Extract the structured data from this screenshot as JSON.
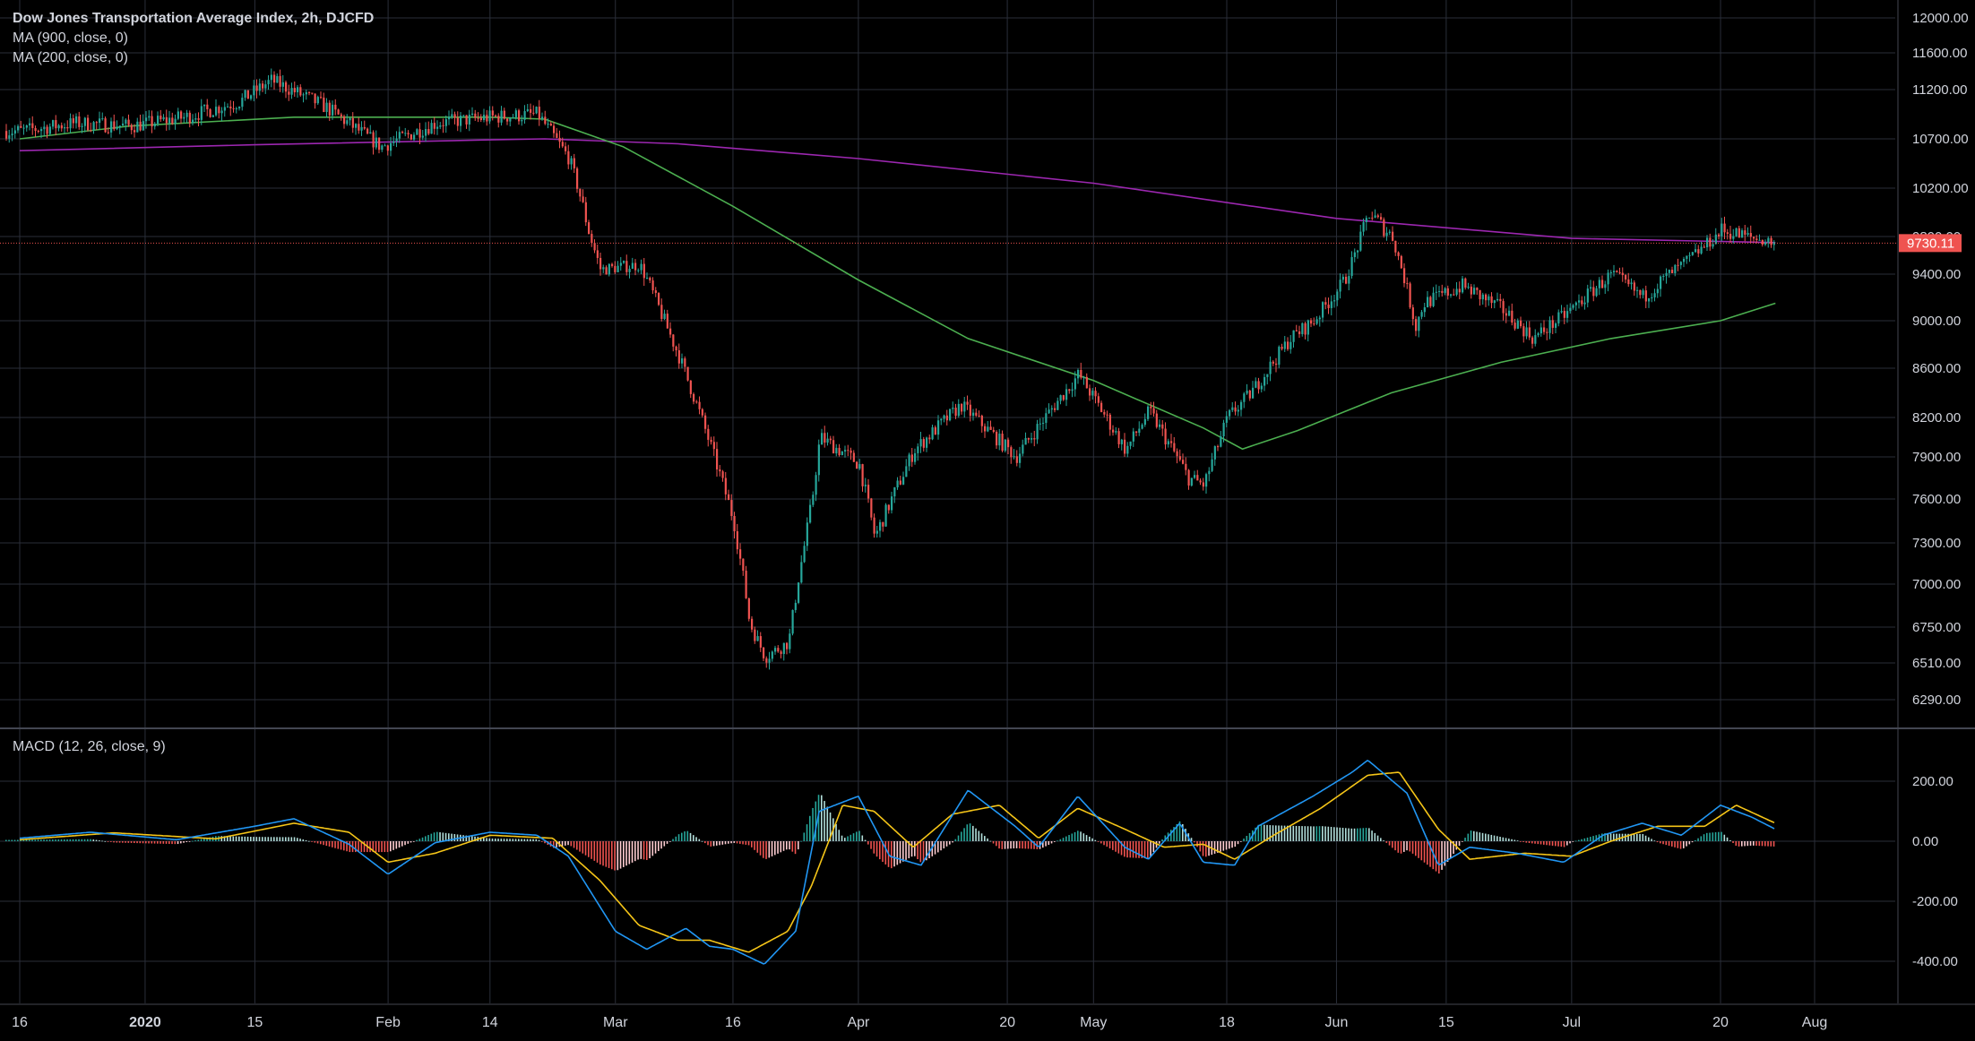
{
  "header": {
    "title": "Dow Jones Transportation Average Index, 2h, DJCFD",
    "ma1": "MA (900, close, 0)",
    "ma2": "MA (200, close, 0)",
    "macd": "MACD (12, 26, close, 9)"
  },
  "colors": {
    "background": "#000000",
    "grid": "#2a2e39",
    "text": "#d1d4dc",
    "up": "#26a69a",
    "down": "#ef5350",
    "ma_long": "#9c27b0",
    "ma_short": "#4caf50",
    "macd_line": "#2196f3",
    "signal_line": "#f5c518",
    "price_line": "#ef5350"
  },
  "chart_data": [
    {
      "type": "candlestick",
      "title": "Dow Jones Transportation Average Index, 2h, DJCFD",
      "y_ticks": [
        "12000.00",
        "11600.00",
        "11200.00",
        "10700.00",
        "10200.00",
        "9800.00",
        "9400.00",
        "9000.00",
        "8600.00",
        "8200.00",
        "7900.00",
        "7600.00",
        "7300.00",
        "7000.00",
        "6750.00",
        "6510.00",
        "6290.00"
      ],
      "x_ticks": [
        "16",
        "2020",
        "15",
        "Feb",
        "14",
        "Mar",
        "16",
        "Apr",
        "20",
        "May",
        "18",
        "Jun",
        "15",
        "Jul",
        "20",
        "Aug"
      ],
      "last_price": "9730.11",
      "price_path": [
        [
          "2019-12-16",
          10780
        ],
        [
          "2019-12-23",
          10860
        ],
        [
          "2019-12-30",
          10830
        ],
        [
          "2020-01-06",
          10920
        ],
        [
          "2020-01-13",
          11080
        ],
        [
          "2020-01-17",
          11300
        ],
        [
          "2020-01-24",
          11020
        ],
        [
          "2020-01-31",
          10620
        ],
        [
          "2020-02-07",
          10860
        ],
        [
          "2020-02-14",
          10920
        ],
        [
          "2020-02-20",
          10950
        ],
        [
          "2020-02-24",
          10500
        ],
        [
          "2020-02-28",
          9450
        ],
        [
          "2020-03-04",
          9500
        ],
        [
          "2020-03-09",
          8700
        ],
        [
          "2020-03-11",
          8350
        ],
        [
          "2020-03-16",
          7450
        ],
        [
          "2020-03-18",
          6780
        ],
        [
          "2020-03-20",
          6550
        ],
        [
          "2020-03-23",
          6650
        ],
        [
          "2020-03-26",
          7600
        ],
        [
          "2020-03-27",
          8050
        ],
        [
          "2020-04-01",
          7850
        ],
        [
          "2020-04-03",
          7340
        ],
        [
          "2020-04-08",
          7950
        ],
        [
          "2020-04-14",
          8300
        ],
        [
          "2020-04-21",
          7900
        ],
        [
          "2020-04-29",
          8550
        ],
        [
          "2020-05-05",
          7950
        ],
        [
          "2020-05-08",
          8250
        ],
        [
          "2020-05-13",
          7750
        ],
        [
          "2020-05-15",
          7700
        ],
        [
          "2020-05-18",
          8200
        ],
        [
          "2020-05-21",
          8400
        ],
        [
          "2020-05-26",
          8850
        ],
        [
          "2020-05-29",
          9000
        ],
        [
          "2020-06-02",
          9350
        ],
        [
          "2020-06-05",
          10000
        ],
        [
          "2020-06-08",
          9800
        ],
        [
          "2020-06-11",
          8950
        ],
        [
          "2020-06-12",
          9150
        ],
        [
          "2020-06-17",
          9300
        ],
        [
          "2020-06-22",
          9100
        ],
        [
          "2020-06-26",
          8850
        ],
        [
          "2020-06-30",
          9050
        ],
        [
          "2020-07-06",
          9400
        ],
        [
          "2020-07-10",
          9200
        ],
        [
          "2020-07-15",
          9500
        ],
        [
          "2020-07-20",
          9850
        ],
        [
          "2020-07-23",
          9800
        ],
        [
          "2020-07-27",
          9730
        ]
      ],
      "series": [
        {
          "name": "MA (900, close, 0)",
          "points": [
            [
              "2019-12-16",
              10580
            ],
            [
              "2020-01-15",
              10640
            ],
            [
              "2020-02-14",
              10690
            ],
            [
              "2020-02-21",
              10700
            ],
            [
              "2020-03-09",
              10650
            ],
            [
              "2020-04-01",
              10500
            ],
            [
              "2020-05-01",
              10250
            ],
            [
              "2020-06-01",
              9950
            ],
            [
              "2020-07-01",
              9780
            ],
            [
              "2020-07-27",
              9735
            ]
          ]
        },
        {
          "name": "MA (200, close, 0)",
          "points": [
            [
              "2019-12-16",
              10700
            ],
            [
              "2019-12-30",
              10830
            ],
            [
              "2020-01-20",
              10920
            ],
            [
              "2020-02-14",
              10920
            ],
            [
              "2020-02-21",
              10900
            ],
            [
              "2020-03-02",
              10620
            ],
            [
              "2020-03-16",
              10050
            ],
            [
              "2020-04-01",
              9350
            ],
            [
              "2020-04-15",
              8850
            ],
            [
              "2020-05-01",
              8500
            ],
            [
              "2020-05-15",
              8120
            ],
            [
              "2020-05-20",
              7960
            ],
            [
              "2020-05-27",
              8100
            ],
            [
              "2020-06-08",
              8400
            ],
            [
              "2020-06-22",
              8650
            ],
            [
              "2020-07-06",
              8850
            ],
            [
              "2020-07-20",
              9000
            ],
            [
              "2020-07-27",
              9150
            ]
          ]
        }
      ]
    },
    {
      "type": "line",
      "title": "MACD (12, 26, close, 9)",
      "y_ticks": [
        "200.00",
        "0.00",
        "-200.00",
        "-400.00"
      ],
      "macd_line": [
        [
          "2019-12-16",
          10
        ],
        [
          "2019-12-25",
          30
        ],
        [
          "2020-01-05",
          5
        ],
        [
          "2020-01-15",
          50
        ],
        [
          "2020-01-20",
          75
        ],
        [
          "2020-01-27",
          -10
        ],
        [
          "2020-02-01",
          -110
        ],
        [
          "2020-02-07",
          -5
        ],
        [
          "2020-02-14",
          30
        ],
        [
          "2020-02-20",
          20
        ],
        [
          "2020-02-24",
          -50
        ],
        [
          "2020-03-01",
          -300
        ],
        [
          "2020-03-05",
          -360
        ],
        [
          "2020-03-10",
          -290
        ],
        [
          "2020-03-13",
          -350
        ],
        [
          "2020-03-16",
          -360
        ],
        [
          "2020-03-20",
          -410
        ],
        [
          "2020-03-24",
          -300
        ],
        [
          "2020-03-27",
          100
        ],
        [
          "2020-04-01",
          150
        ],
        [
          "2020-04-05",
          -50
        ],
        [
          "2020-04-09",
          -80
        ],
        [
          "2020-04-15",
          170
        ],
        [
          "2020-04-21",
          50
        ],
        [
          "2020-04-24",
          -20
        ],
        [
          "2020-04-29",
          150
        ],
        [
          "2020-05-05",
          -20
        ],
        [
          "2020-05-08",
          -60
        ],
        [
          "2020-05-12",
          60
        ],
        [
          "2020-05-15",
          -70
        ],
        [
          "2020-05-19",
          -80
        ],
        [
          "2020-05-22",
          50
        ],
        [
          "2020-05-29",
          150
        ],
        [
          "2020-06-03",
          230
        ],
        [
          "2020-06-05",
          270
        ],
        [
          "2020-06-10",
          160
        ],
        [
          "2020-06-14",
          -80
        ],
        [
          "2020-06-18",
          -20
        ],
        [
          "2020-06-24",
          -40
        ],
        [
          "2020-06-30",
          -70
        ],
        [
          "2020-07-05",
          20
        ],
        [
          "2020-07-10",
          60
        ],
        [
          "2020-07-15",
          20
        ],
        [
          "2020-07-20",
          120
        ],
        [
          "2020-07-24",
          80
        ],
        [
          "2020-07-27",
          40
        ]
      ],
      "signal_line": [
        [
          "2019-12-16",
          5
        ],
        [
          "2019-12-28",
          28
        ],
        [
          "2020-01-10",
          8
        ],
        [
          "2020-01-20",
          60
        ],
        [
          "2020-01-27",
          30
        ],
        [
          "2020-02-01",
          -70
        ],
        [
          "2020-02-07",
          -40
        ],
        [
          "2020-02-14",
          20
        ],
        [
          "2020-02-22",
          10
        ],
        [
          "2020-02-28",
          -130
        ],
        [
          "2020-03-04",
          -280
        ],
        [
          "2020-03-09",
          -330
        ],
        [
          "2020-03-13",
          -330
        ],
        [
          "2020-03-18",
          -370
        ],
        [
          "2020-03-23",
          -300
        ],
        [
          "2020-03-26",
          -150
        ],
        [
          "2020-03-30",
          120
        ],
        [
          "2020-04-03",
          100
        ],
        [
          "2020-04-08",
          -20
        ],
        [
          "2020-04-13",
          90
        ],
        [
          "2020-04-19",
          120
        ],
        [
          "2020-04-24",
          10
        ],
        [
          "2020-04-29",
          110
        ],
        [
          "2020-05-05",
          40
        ],
        [
          "2020-05-10",
          -20
        ],
        [
          "2020-05-15",
          -10
        ],
        [
          "2020-05-19",
          -60
        ],
        [
          "2020-05-24",
          20
        ],
        [
          "2020-05-30",
          110
        ],
        [
          "2020-06-05",
          220
        ],
        [
          "2020-06-09",
          230
        ],
        [
          "2020-06-14",
          40
        ],
        [
          "2020-06-18",
          -60
        ],
        [
          "2020-06-25",
          -40
        ],
        [
          "2020-07-01",
          -50
        ],
        [
          "2020-07-06",
          0
        ],
        [
          "2020-07-12",
          50
        ],
        [
          "2020-07-18",
          50
        ],
        [
          "2020-07-22",
          120
        ],
        [
          "2020-07-27",
          60
        ]
      ]
    }
  ]
}
